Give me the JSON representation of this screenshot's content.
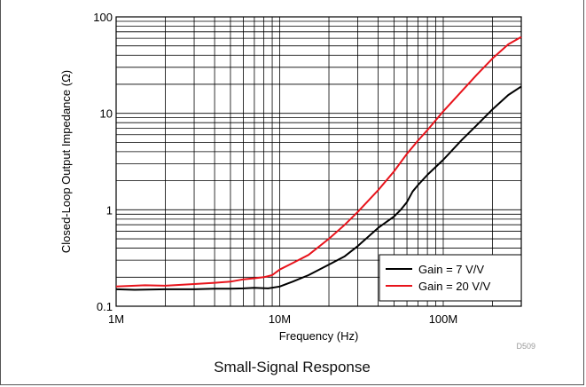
{
  "chart_data": {
    "type": "line",
    "x_scale": "log",
    "y_scale": "log",
    "xlim": [
      1000000,
      300000000
    ],
    "ylim": [
      0.1,
      100
    ],
    "xlabel": "Frequency (Hz)",
    "ylabel": "Closed-Loop Output Impedance (Ω)",
    "x_ticks": [
      {
        "value": 1000000,
        "label": "1M"
      },
      {
        "value": 10000000,
        "label": "10M"
      },
      {
        "value": 100000000,
        "label": "100M"
      }
    ],
    "y_ticks": [
      {
        "value": 0.1,
        "label": "0.1"
      },
      {
        "value": 1,
        "label": "1"
      },
      {
        "value": 10,
        "label": "10"
      },
      {
        "value": 100,
        "label": "100"
      }
    ],
    "grid": true,
    "legend_position": "bottom-right",
    "series": [
      {
        "name": "Gain = 7 V/V",
        "color": "#000000",
        "points": [
          [
            1000000,
            0.15
          ],
          [
            1300000,
            0.148
          ],
          [
            2000000,
            0.15
          ],
          [
            3000000,
            0.15
          ],
          [
            4000000,
            0.152
          ],
          [
            5000000,
            0.152
          ],
          [
            6000000,
            0.153
          ],
          [
            7000000,
            0.155
          ],
          [
            8500000,
            0.153
          ],
          [
            10000000,
            0.16
          ],
          [
            12000000,
            0.18
          ],
          [
            15000000,
            0.21
          ],
          [
            20000000,
            0.27
          ],
          [
            25000000,
            0.33
          ],
          [
            30000000,
            0.42
          ],
          [
            35000000,
            0.53
          ],
          [
            40000000,
            0.65
          ],
          [
            45000000,
            0.75
          ],
          [
            50000000,
            0.85
          ],
          [
            55000000,
            1.0
          ],
          [
            60000000,
            1.2
          ],
          [
            65000000,
            1.55
          ],
          [
            70000000,
            1.8
          ],
          [
            80000000,
            2.3
          ],
          [
            100000000,
            3.3
          ],
          [
            130000000,
            5.3
          ],
          [
            160000000,
            7.5
          ],
          [
            200000000,
            11
          ],
          [
            250000000,
            15.5
          ],
          [
            300000000,
            19
          ]
        ]
      },
      {
        "name": "Gain = 20 V/V",
        "color": "#e8141c",
        "points": [
          [
            1000000,
            0.16
          ],
          [
            1500000,
            0.165
          ],
          [
            2000000,
            0.163
          ],
          [
            3000000,
            0.17
          ],
          [
            4000000,
            0.175
          ],
          [
            5000000,
            0.18
          ],
          [
            6000000,
            0.19
          ],
          [
            7000000,
            0.195
          ],
          [
            8000000,
            0.2
          ],
          [
            9000000,
            0.21
          ],
          [
            10000000,
            0.24
          ],
          [
            12000000,
            0.28
          ],
          [
            15000000,
            0.34
          ],
          [
            20000000,
            0.5
          ],
          [
            25000000,
            0.7
          ],
          [
            30000000,
            0.95
          ],
          [
            40000000,
            1.6
          ],
          [
            50000000,
            2.5
          ],
          [
            60000000,
            3.8
          ],
          [
            70000000,
            5.2
          ],
          [
            80000000,
            6.7
          ],
          [
            100000000,
            10.5
          ],
          [
            130000000,
            17
          ],
          [
            160000000,
            25
          ],
          [
            200000000,
            37
          ],
          [
            250000000,
            52
          ],
          [
            300000000,
            62
          ]
        ]
      }
    ],
    "annotation": "D509"
  },
  "caption": "Small-Signal Response"
}
